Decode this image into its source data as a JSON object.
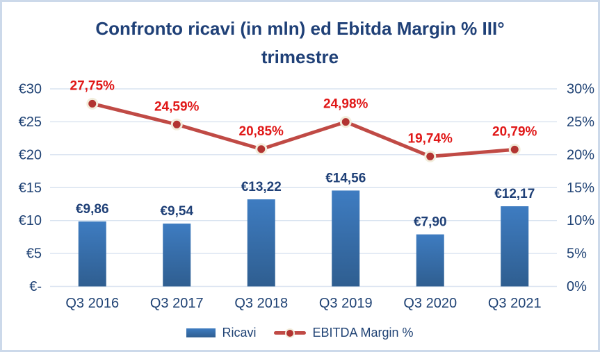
{
  "chart_data": {
    "type": "combo-bar-line",
    "title": "Confronto ricavi (in mln) ed Ebitda Margin % III° trimestre",
    "title_lines": [
      "Confronto ricavi (in mln) ed Ebitda Margin % III°",
      "trimestre"
    ],
    "categories": [
      "Q3 2016",
      "Q3 2017",
      "Q3 2018",
      "Q3 2019",
      "Q3 2020",
      "Q3 2021"
    ],
    "series": [
      {
        "name": "Ricavi",
        "type": "bar",
        "axis": "left",
        "values": [
          9.86,
          9.54,
          13.22,
          14.56,
          7.9,
          12.17
        ],
        "labels": [
          "€9,86",
          "€9,54",
          "€13,22",
          "€14,56",
          "€7,90",
          "€12,17"
        ],
        "color_top": "#3E7CC1",
        "color_bottom": "#2F5E90",
        "label_color": "#1F4077"
      },
      {
        "name": "EBITDA Margin %",
        "type": "line",
        "axis": "right",
        "values": [
          27.75,
          24.59,
          20.85,
          24.98,
          19.74,
          20.79
        ],
        "labels": [
          "27,75%",
          "24,59%",
          "20,85%",
          "24,98%",
          "19,74%",
          "20,79%"
        ],
        "line_color": "#C04A45",
        "marker_fill": "#B23431",
        "marker_ring": "#F2EDDC",
        "label_color": "#E01717"
      }
    ],
    "left_axis": {
      "ticks": [
        "€30",
        "€25",
        "€20",
        "€15",
        "€10",
        "€5",
        "€-"
      ],
      "tick_values": [
        30,
        25,
        20,
        15,
        10,
        5,
        0
      ],
      "min": 0,
      "max": 30
    },
    "right_axis": {
      "ticks": [
        "30%",
        "25%",
        "20%",
        "15%",
        "10%",
        "5%",
        "0%"
      ],
      "tick_values": [
        30,
        25,
        20,
        15,
        10,
        5,
        0
      ],
      "min": 0,
      "max": 30
    },
    "grid": true,
    "grid_color": "#d9e3f0",
    "axis_text_color": "#1F4274",
    "legend_position": "bottom"
  },
  "legend": {
    "items": [
      {
        "label": "Ricavi"
      },
      {
        "label": "EBITDA Margin %"
      }
    ]
  }
}
